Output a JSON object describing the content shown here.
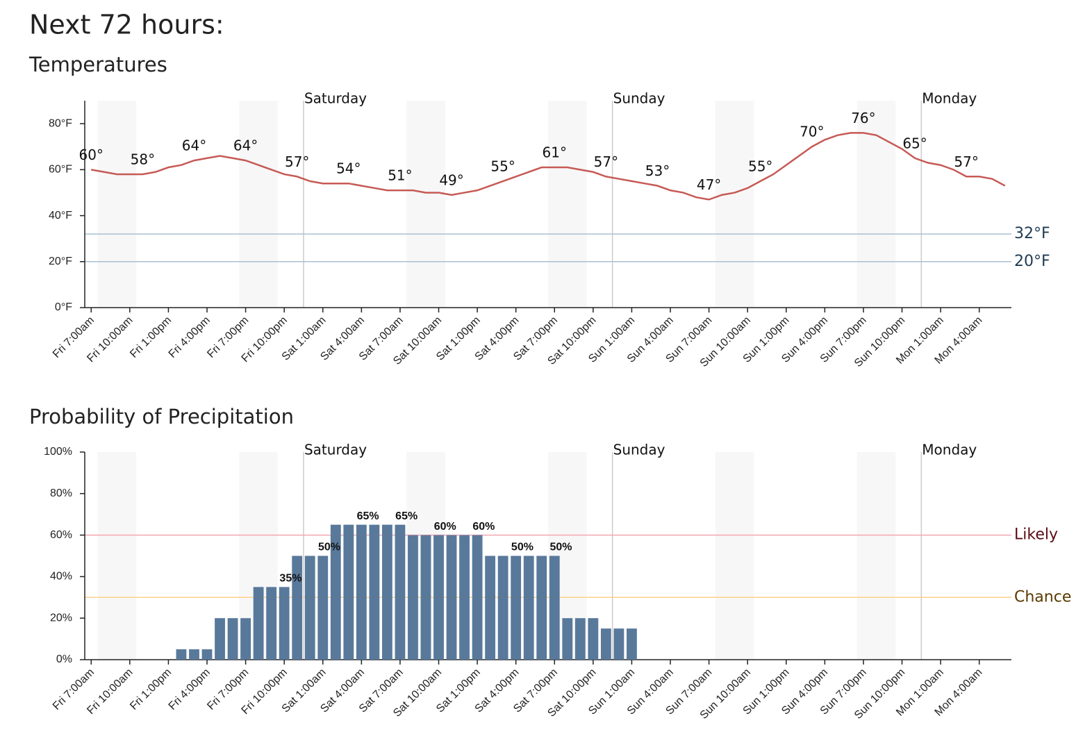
{
  "title": "Next 72 hours:",
  "chart_data": [
    {
      "type": "line",
      "title": "Temperatures",
      "color": "#c65a55",
      "x": [
        0,
        1,
        2,
        3,
        4,
        5,
        6,
        7,
        8,
        9,
        10,
        11,
        12,
        13,
        14,
        15,
        16,
        17,
        18,
        19,
        20,
        21,
        22,
        23,
        24,
        25,
        26,
        27,
        28,
        29,
        30,
        31,
        32,
        33,
        34,
        35,
        36,
        37,
        38,
        39,
        40,
        41,
        42,
        43,
        44,
        45,
        46,
        47,
        48,
        49,
        50,
        51,
        52,
        53,
        54,
        55,
        56,
        57,
        58,
        59,
        60,
        61,
        62,
        63,
        64,
        65,
        66,
        67,
        68,
        69,
        70,
        71
      ],
      "values": [
        60,
        59,
        58,
        58,
        58,
        59,
        61,
        62,
        64,
        65,
        66,
        65,
        64,
        62,
        60,
        58,
        57,
        55,
        54,
        54,
        54,
        53,
        52,
        51,
        51,
        51,
        50,
        50,
        49,
        50,
        51,
        53,
        55,
        57,
        59,
        61,
        61,
        61,
        60,
        59,
        57,
        56,
        55,
        54,
        53,
        51,
        50,
        48,
        47,
        49,
        50,
        52,
        55,
        58,
        62,
        66,
        70,
        73,
        75,
        76,
        76,
        75,
        72,
        69,
        65,
        63,
        62,
        60,
        57,
        57,
        56,
        53
      ],
      "value_labels": [
        "60°",
        null,
        null,
        null,
        "58°",
        null,
        null,
        null,
        "64°",
        null,
        null,
        null,
        "64°",
        null,
        null,
        null,
        "57°",
        null,
        null,
        null,
        "54°",
        null,
        null,
        null,
        "51°",
        null,
        null,
        null,
        "49°",
        null,
        null,
        null,
        "55°",
        null,
        null,
        null,
        "61°",
        null,
        null,
        null,
        "57°",
        null,
        null,
        null,
        "53°",
        null,
        null,
        null,
        "47°",
        null,
        null,
        null,
        "55°",
        null,
        null,
        null,
        "70°",
        null,
        null,
        null,
        "76°",
        null,
        null,
        null,
        "65°",
        null,
        null,
        null,
        "57°",
        null,
        null,
        null
      ],
      "xlim": [
        -0.5,
        71.5
      ],
      "xticks": [
        {
          "value": 0,
          "label": "Fri 7:00am"
        },
        {
          "value": 3,
          "label": "Fri 10:00am"
        },
        {
          "value": 6,
          "label": "Fri 1:00pm"
        },
        {
          "value": 9,
          "label": "Fri 4:00pm"
        },
        {
          "value": 12,
          "label": "Fri 7:00pm"
        },
        {
          "value": 15,
          "label": "Fri 10:00pm"
        },
        {
          "value": 18,
          "label": "Sat 1:00am"
        },
        {
          "value": 21,
          "label": "Sat 4:00am"
        },
        {
          "value": 24,
          "label": "Sat 7:00am"
        },
        {
          "value": 27,
          "label": "Sat 10:00am"
        },
        {
          "value": 30,
          "label": "Sat 1:00pm"
        },
        {
          "value": 33,
          "label": "Sat 4:00pm"
        },
        {
          "value": 36,
          "label": "Sat 7:00pm"
        },
        {
          "value": 39,
          "label": "Sat 10:00pm"
        },
        {
          "value": 42,
          "label": "Sun 1:00am"
        },
        {
          "value": 45,
          "label": "Sun 4:00am"
        },
        {
          "value": 48,
          "label": "Sun 7:00am"
        },
        {
          "value": 51,
          "label": "Sun 10:00am"
        },
        {
          "value": 54,
          "label": "Sun 1:00pm"
        },
        {
          "value": 57,
          "label": "Sun 4:00pm"
        },
        {
          "value": 60,
          "label": "Sun 7:00pm"
        },
        {
          "value": 63,
          "label": "Sun 10:00pm"
        },
        {
          "value": 66,
          "label": "Mon 1:00am"
        },
        {
          "value": 69,
          "label": "Mon 4:00am"
        }
      ],
      "ylim": [
        0,
        90
      ],
      "yticks": [
        {
          "value": 0,
          "label": "0°F"
        },
        {
          "value": 20,
          "label": "20°F"
        },
        {
          "value": 40,
          "label": "40°F"
        },
        {
          "value": 60,
          "label": "60°F"
        },
        {
          "value": 80,
          "label": "80°F"
        }
      ],
      "reference_lines": [
        {
          "value": 32,
          "label": "32°F",
          "color": "#a9c0d3",
          "text_color": "#1f3a52"
        },
        {
          "value": 20,
          "label": "20°F",
          "color": "#a9c0d3",
          "text_color": "#1f3a52"
        }
      ],
      "day_markers": [
        {
          "value": 16.5,
          "label": "Saturday"
        },
        {
          "value": 40.5,
          "label": "Sunday"
        },
        {
          "value": 64.5,
          "label": "Monday"
        }
      ],
      "shaded_ranges": [
        [
          0.5,
          3.5
        ],
        [
          11.5,
          14.5
        ],
        [
          24.5,
          27.5
        ],
        [
          35.5,
          38.5
        ],
        [
          48.5,
          51.5
        ],
        [
          59.5,
          62.5
        ]
      ]
    },
    {
      "type": "bar",
      "title": "Probability of Precipitation",
      "color": "#59799b",
      "x": [
        0,
        1,
        2,
        3,
        4,
        5,
        6,
        7,
        8,
        9,
        10,
        11,
        12,
        13,
        14,
        15,
        16,
        17,
        18,
        19,
        20,
        21,
        22,
        23,
        24,
        25,
        26,
        27,
        28,
        29,
        30,
        31,
        32,
        33,
        34,
        35,
        36,
        37,
        38,
        39,
        40,
        41,
        42,
        43,
        44,
        45,
        46,
        47,
        48,
        49,
        50,
        51,
        52,
        53,
        54,
        55,
        56,
        57,
        58,
        59,
        60,
        61,
        62,
        63,
        64,
        65,
        66,
        67,
        68,
        69,
        70,
        71
      ],
      "values": [
        0,
        0,
        0,
        0,
        0,
        0,
        0,
        5,
        5,
        5,
        20,
        20,
        20,
        35,
        35,
        35,
        50,
        50,
        50,
        65,
        65,
        65,
        65,
        65,
        65,
        60,
        60,
        60,
        60,
        60,
        60,
        50,
        50,
        50,
        50,
        50,
        50,
        20,
        20,
        20,
        15,
        15,
        15,
        0,
        0,
        0,
        0,
        0,
        0,
        0,
        0,
        0,
        0,
        0,
        0,
        0,
        0,
        0,
        0,
        0,
        0,
        0,
        0,
        0,
        0,
        0,
        0,
        0,
        0,
        0,
        0,
        0
      ],
      "value_labels": [
        null,
        null,
        null,
        null,
        null,
        null,
        null,
        null,
        null,
        null,
        null,
        null,
        null,
        null,
        null,
        "35%",
        null,
        null,
        "50%",
        null,
        null,
        "65%",
        null,
        null,
        "65%",
        null,
        null,
        "60%",
        null,
        null,
        "60%",
        null,
        null,
        "50%",
        null,
        null,
        "50%",
        null,
        null,
        null,
        null,
        null,
        null,
        null,
        null,
        null,
        null,
        null,
        null,
        null,
        null,
        null,
        null,
        null,
        null,
        null,
        null,
        null,
        null,
        null,
        null,
        null,
        null,
        null,
        null,
        null,
        null,
        null,
        null,
        null,
        null,
        null
      ],
      "xlim": [
        -0.5,
        71.5
      ],
      "xticks": [
        {
          "value": 0,
          "label": "Fri 7:00am"
        },
        {
          "value": 3,
          "label": "Fri 10:00am"
        },
        {
          "value": 6,
          "label": "Fri 1:00pm"
        },
        {
          "value": 9,
          "label": "Fri 4:00pm"
        },
        {
          "value": 12,
          "label": "Fri 7:00pm"
        },
        {
          "value": 15,
          "label": "Fri 10:00pm"
        },
        {
          "value": 18,
          "label": "Sat 1:00am"
        },
        {
          "value": 21,
          "label": "Sat 4:00am"
        },
        {
          "value": 24,
          "label": "Sat 7:00am"
        },
        {
          "value": 27,
          "label": "Sat 10:00am"
        },
        {
          "value": 30,
          "label": "Sat 1:00pm"
        },
        {
          "value": 33,
          "label": "Sat 4:00pm"
        },
        {
          "value": 36,
          "label": "Sat 7:00pm"
        },
        {
          "value": 39,
          "label": "Sat 10:00pm"
        },
        {
          "value": 42,
          "label": "Sun 1:00am"
        },
        {
          "value": 45,
          "label": "Sun 4:00am"
        },
        {
          "value": 48,
          "label": "Sun 7:00am"
        },
        {
          "value": 51,
          "label": "Sun 10:00am"
        },
        {
          "value": 54,
          "label": "Sun 1:00pm"
        },
        {
          "value": 57,
          "label": "Sun 4:00pm"
        },
        {
          "value": 60,
          "label": "Sun 7:00pm"
        },
        {
          "value": 63,
          "label": "Sun 10:00pm"
        },
        {
          "value": 66,
          "label": "Mon 1:00am"
        },
        {
          "value": 69,
          "label": "Mon 4:00am"
        }
      ],
      "ylim": [
        0,
        100
      ],
      "yticks": [
        {
          "value": 0,
          "label": "0%"
        },
        {
          "value": 20,
          "label": "20%"
        },
        {
          "value": 40,
          "label": "40%"
        },
        {
          "value": 60,
          "label": "60%"
        },
        {
          "value": 80,
          "label": "80%"
        },
        {
          "value": 100,
          "label": "100%"
        }
      ],
      "reference_lines": [
        {
          "value": 60,
          "label": "Likely",
          "color": "#f2a8b0",
          "text_color": "#5a0a14"
        },
        {
          "value": 30,
          "label": "Chance",
          "color": "#ffd08a",
          "text_color": "#5a3a00"
        }
      ],
      "day_markers": [
        {
          "value": 16.5,
          "label": "Saturday"
        },
        {
          "value": 40.5,
          "label": "Sunday"
        },
        {
          "value": 64.5,
          "label": "Monday"
        }
      ],
      "shaded_ranges": [
        [
          0.5,
          3.5
        ],
        [
          11.5,
          14.5
        ],
        [
          24.5,
          27.5
        ],
        [
          35.5,
          38.5
        ],
        [
          48.5,
          51.5
        ],
        [
          59.5,
          62.5
        ]
      ]
    }
  ]
}
